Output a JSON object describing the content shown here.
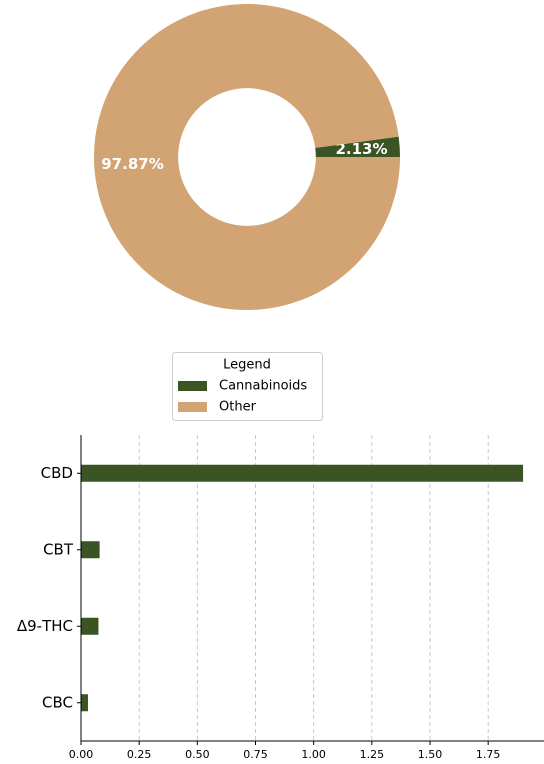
{
  "chart_data": [
    {
      "type": "pie",
      "hole": 0.45,
      "categories": [
        "Cannabinoids",
        "Other"
      ],
      "values": [
        2.13,
        97.87
      ],
      "value_labels": [
        "2.13%",
        "97.87%"
      ],
      "colors": [
        "#3a5424",
        "#d2a474"
      ],
      "legend_title": "Legend"
    },
    {
      "type": "barh",
      "categories": [
        "CBD",
        "CBT",
        "Δ9-THC",
        "CBC"
      ],
      "values": [
        1.9,
        0.08,
        0.075,
        0.03
      ],
      "color": "#3a5424",
      "xlim": [
        0,
        1.99
      ],
      "xticks": [
        {
          "value": 0,
          "label": "0.00"
        },
        {
          "value": 0.25,
          "label": "0.25"
        },
        {
          "value": 0.5,
          "label": "0.50"
        },
        {
          "value": 0.75,
          "label": "0.75"
        },
        {
          "value": 1,
          "label": "1.00"
        },
        {
          "value": 1.25,
          "label": "1.25"
        },
        {
          "value": 1.5,
          "label": "1.50"
        },
        {
          "value": 1.75,
          "label": "1.75"
        }
      ],
      "grid": true
    }
  ]
}
